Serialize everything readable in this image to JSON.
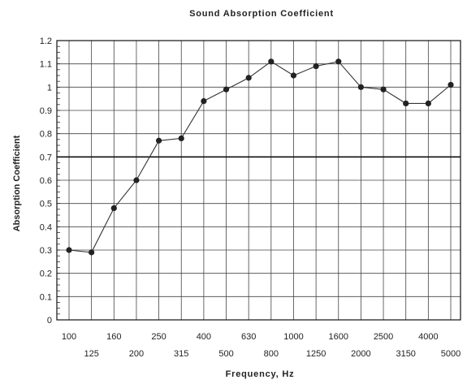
{
  "chart_data": {
    "type": "line",
    "title": "Sound Absorption Coefficient",
    "xlabel": "Frequency, Hz",
    "ylabel": "Absorption Coefficient",
    "categories": [
      "100",
      "125",
      "160",
      "200",
      "250",
      "315",
      "400",
      "500",
      "630",
      "800",
      "1000",
      "1250",
      "1600",
      "2000",
      "2500",
      "3150",
      "4000",
      "5000"
    ],
    "series": [
      {
        "values": [
          0.3,
          0.29,
          0.48,
          0.6,
          0.77,
          0.78,
          0.94,
          0.99,
          1.04,
          1.11,
          1.05,
          1.09,
          1.11,
          1.0,
          0.99,
          0.93,
          0.93,
          1.01
        ]
      }
    ],
    "ylim": [
      0,
      1.2
    ],
    "yticks": [
      "0",
      "0.1",
      "0.2",
      "0.3",
      "0.4",
      "0.5",
      "0.6",
      "0.7",
      "0.8",
      "0.9",
      "1",
      "1.1",
      "1.2"
    ],
    "highlight_line": 0.7,
    "grid": true,
    "legend": "none"
  }
}
